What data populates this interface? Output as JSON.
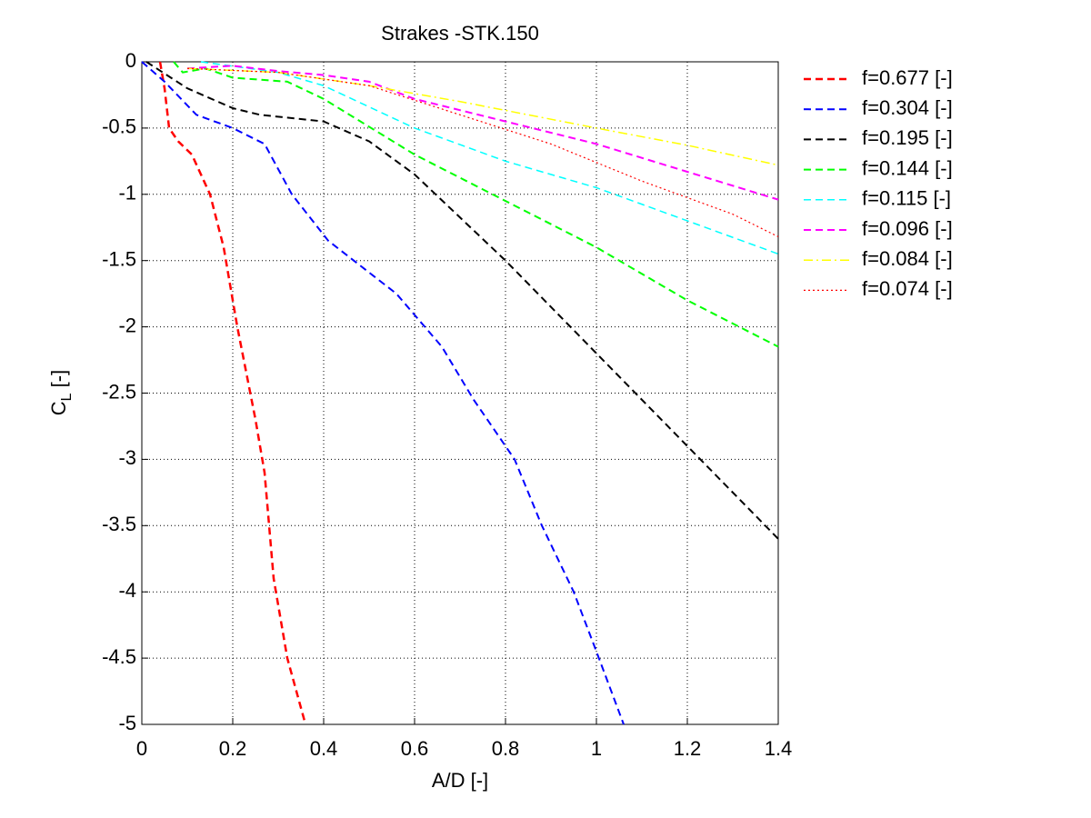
{
  "chart_data": {
    "type": "line",
    "title": "Strakes -STK.150",
    "xlabel": "A/D [-]",
    "ylabel": [
      "C",
      "L",
      " [-]"
    ],
    "xlim": [
      0,
      1.4
    ],
    "ylim": [
      -5,
      0
    ],
    "xticks": [
      0,
      0.2,
      0.4,
      0.6,
      0.8,
      1,
      1.2,
      1.4
    ],
    "yticks": [
      0,
      -0.5,
      -1,
      -1.5,
      -2,
      -2.5,
      -3,
      -3.5,
      -4,
      -4.5,
      -5
    ],
    "grid": true,
    "legend": "outside-right",
    "series": [
      {
        "name": "f=0.677 [-]",
        "color": "#ff0000",
        "linestyle": "dashed",
        "linewidth": 2.5,
        "x": [
          0.04,
          0.05,
          0.06,
          0.08,
          0.11,
          0.15,
          0.18,
          0.21,
          0.25,
          0.27,
          0.28,
          0.29,
          0.32,
          0.36
        ],
        "values": [
          0,
          -0.2,
          -0.5,
          -0.6,
          -0.7,
          -1.0,
          -1.4,
          -2.0,
          -2.7,
          -3.1,
          -3.5,
          -3.9,
          -4.5,
          -5.0
        ]
      },
      {
        "name": "f=0.304 [-]",
        "color": "#0000ff",
        "linestyle": "dashed",
        "linewidth": 2,
        "x": [
          0,
          0.05,
          0.12,
          0.2,
          0.27,
          0.33,
          0.41,
          0.56,
          0.66,
          0.73,
          0.82,
          0.88,
          0.95,
          1.0,
          1.06
        ],
        "values": [
          0,
          -0.15,
          -0.4,
          -0.5,
          -0.62,
          -1.0,
          -1.35,
          -1.75,
          -2.15,
          -2.55,
          -3.0,
          -3.5,
          -4.0,
          -4.45,
          -5.0
        ]
      },
      {
        "name": "f=0.195 [-]",
        "color": "#000000",
        "linestyle": "dashed",
        "linewidth": 2,
        "x": [
          0.01,
          0.1,
          0.2,
          0.26,
          0.4,
          0.5,
          0.6,
          0.8,
          1.0,
          1.2,
          1.4
        ],
        "values": [
          0,
          -0.2,
          -0.35,
          -0.4,
          -0.45,
          -0.6,
          -0.85,
          -1.5,
          -2.2,
          -2.9,
          -3.6
        ]
      },
      {
        "name": "f=0.144 [-]",
        "color": "#00ff00",
        "linestyle": "dashed",
        "linewidth": 2,
        "x": [
          0.07,
          0.09,
          0.14,
          0.2,
          0.32,
          0.4,
          0.6,
          0.8,
          1.0,
          1.2,
          1.4
        ],
        "values": [
          0,
          -0.08,
          -0.05,
          -0.12,
          -0.15,
          -0.28,
          -0.7,
          -1.05,
          -1.4,
          -1.8,
          -2.15
        ]
      },
      {
        "name": "f=0.115 [-]",
        "color": "#00ffff",
        "linestyle": "dashed",
        "linewidth": 1.5,
        "x": [
          0.13,
          0.3,
          0.4,
          0.6,
          0.8,
          1.0,
          1.2,
          1.4
        ],
        "values": [
          0,
          -0.08,
          -0.18,
          -0.5,
          -0.75,
          -0.95,
          -1.2,
          -1.45
        ]
      },
      {
        "name": "f=0.096 [-]",
        "color": "#ff00ff",
        "linestyle": "dashed",
        "linewidth": 2,
        "x": [
          0.1,
          0.2,
          0.3,
          0.4,
          0.5,
          0.6,
          0.8,
          1.0,
          1.2,
          1.4
        ],
        "values": [
          -0.05,
          -0.03,
          -0.07,
          -0.1,
          -0.15,
          -0.28,
          -0.45,
          -0.62,
          -0.83,
          -1.04
        ]
      },
      {
        "name": "f=0.084 [-]",
        "color": "#ffff00",
        "linestyle": "dashdot",
        "linewidth": 1.5,
        "x": [
          0.1,
          0.3,
          0.5,
          0.7,
          1.0,
          1.2,
          1.4
        ],
        "values": [
          -0.05,
          -0.08,
          -0.18,
          -0.3,
          -0.5,
          -0.63,
          -0.78
        ]
      },
      {
        "name": "f=0.074 [-]",
        "color": "#ff0000",
        "linestyle": "dotted",
        "linewidth": 1.2,
        "x": [
          0.1,
          0.3,
          0.5,
          0.7,
          0.9,
          1.1,
          1.3,
          1.4
        ],
        "values": [
          -0.05,
          -0.08,
          -0.18,
          -0.4,
          -0.62,
          -0.9,
          -1.15,
          -1.32
        ]
      }
    ]
  }
}
